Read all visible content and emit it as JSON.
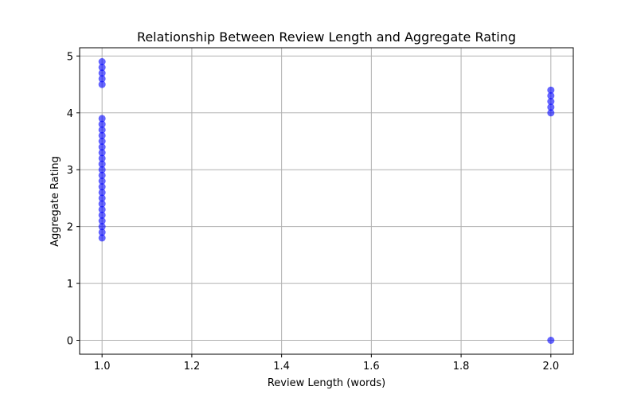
{
  "chart_data": {
    "type": "scatter",
    "title": "Relationship Between Review Length and Aggregate Rating",
    "xlabel": "Review Length (words)",
    "ylabel": "Aggregate Rating",
    "xlim": [
      0.95,
      2.05
    ],
    "ylim": [
      -0.245,
      5.145
    ],
    "xticks": [
      1.0,
      1.2,
      1.4,
      1.6,
      1.8,
      2.0
    ],
    "xtick_labels": [
      "1.0",
      "1.2",
      "1.4",
      "1.6",
      "1.8",
      "2.0"
    ],
    "yticks": [
      0,
      1,
      2,
      3,
      4,
      5
    ],
    "ytick_labels": [
      "0",
      "1",
      "2",
      "3",
      "4",
      "5"
    ],
    "grid": true,
    "marker_color": "#0000ff",
    "marker_opacity": 0.6,
    "series": [
      {
        "points": [
          {
            "x": 1,
            "y": 1.8
          },
          {
            "x": 1,
            "y": 1.9
          },
          {
            "x": 1,
            "y": 2.0
          },
          {
            "x": 1,
            "y": 2.1
          },
          {
            "x": 1,
            "y": 2.2
          },
          {
            "x": 1,
            "y": 2.3
          },
          {
            "x": 1,
            "y": 2.4
          },
          {
            "x": 1,
            "y": 2.5
          },
          {
            "x": 1,
            "y": 2.6
          },
          {
            "x": 1,
            "y": 2.7
          },
          {
            "x": 1,
            "y": 2.8
          },
          {
            "x": 1,
            "y": 2.9
          },
          {
            "x": 1,
            "y": 3.0
          },
          {
            "x": 1,
            "y": 3.1
          },
          {
            "x": 1,
            "y": 3.2
          },
          {
            "x": 1,
            "y": 3.3
          },
          {
            "x": 1,
            "y": 3.4
          },
          {
            "x": 1,
            "y": 3.5
          },
          {
            "x": 1,
            "y": 3.6
          },
          {
            "x": 1,
            "y": 3.7
          },
          {
            "x": 1,
            "y": 3.8
          },
          {
            "x": 1,
            "y": 3.9
          },
          {
            "x": 1,
            "y": 4.5
          },
          {
            "x": 1,
            "y": 4.6
          },
          {
            "x": 1,
            "y": 4.7
          },
          {
            "x": 1,
            "y": 4.8
          },
          {
            "x": 1,
            "y": 4.9
          },
          {
            "x": 2,
            "y": 0.0
          },
          {
            "x": 2,
            "y": 4.0
          },
          {
            "x": 2,
            "y": 4.1
          },
          {
            "x": 2,
            "y": 4.2
          },
          {
            "x": 2,
            "y": 4.3
          },
          {
            "x": 2,
            "y": 4.4
          }
        ]
      }
    ]
  }
}
